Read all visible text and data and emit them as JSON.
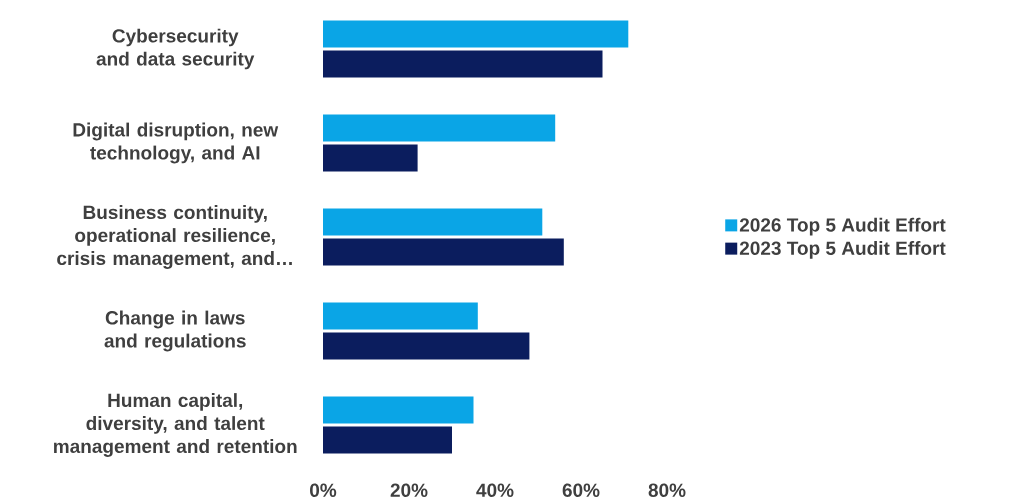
{
  "chart_data": {
    "type": "bar",
    "orientation": "horizontal",
    "categories": [
      "Cybersecurity and data security",
      "Digital disruption, new technology, and AI",
      "Business continuity, operational resilience, crisis management, and…",
      "Change in laws and regulations",
      "Human capital, diversity, and talent management and retention"
    ],
    "series": [
      {
        "name": "2026 Top 5 Audit Effort",
        "color": "#0aa5e6",
        "values": [
          71,
          54,
          51,
          36,
          35
        ]
      },
      {
        "name": "2023 Top 5 Audit Effort",
        "color": "#0b1d5e",
        "values": [
          65,
          22,
          56,
          48,
          30
        ]
      }
    ],
    "xlim": [
      0,
      80
    ],
    "xticks": [
      {
        "value": 0,
        "label": "0%"
      },
      {
        "value": 20,
        "label": "20%"
      },
      {
        "value": 40,
        "label": "40%"
      },
      {
        "value": 60,
        "label": "60%"
      },
      {
        "value": 80,
        "label": "80%"
      }
    ],
    "legend": "right"
  }
}
